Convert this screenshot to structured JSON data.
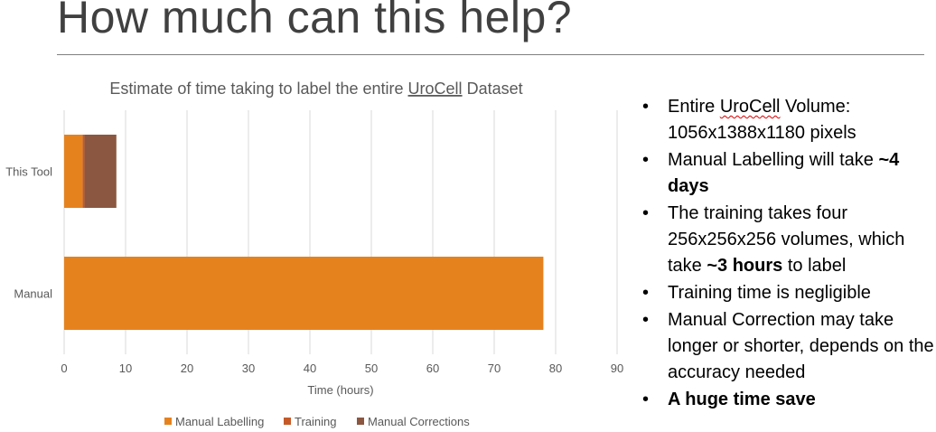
{
  "slide": {
    "title": "How much can this help?"
  },
  "chart_data": {
    "type": "bar",
    "orientation": "horizontal",
    "stacked": true,
    "title": "Estimate of time taking to label the entire UroCell Dataset",
    "title_parts": [
      "Estimate of time taking to label the entire ",
      "UroCell",
      " Dataset"
    ],
    "categories": [
      "This Tool",
      "Manual"
    ],
    "series": [
      {
        "name": "Manual Labelling",
        "values": [
          3,
          78
        ],
        "color": "#e6821e"
      },
      {
        "name": "Training",
        "values": [
          0.3,
          0
        ],
        "color": "#c55a28"
      },
      {
        "name": "Manual Corrections",
        "values": [
          5.2,
          0
        ],
        "color": "#8b5740"
      }
    ],
    "xlabel": "Time (hours)",
    "ylabel": "",
    "xlim": [
      0,
      90
    ],
    "xticks": [
      "0",
      "10",
      "20",
      "30",
      "40",
      "50",
      "60",
      "70",
      "80",
      "90"
    ],
    "grid": "vertical",
    "legend_position": "bottom"
  },
  "bullets": [
    {
      "parts": [
        {
          "t": "Entire "
        },
        {
          "t": "UroCell",
          "style": "wavy"
        },
        {
          "t": " Volume: 1056x1388x1180 pixels"
        }
      ]
    },
    {
      "parts": [
        {
          "t": "Manual Labelling will take "
        },
        {
          "t": "~4 days",
          "style": "bold"
        }
      ]
    },
    {
      "parts": [
        {
          "t": "The training takes four 256x256x256 volumes, which take "
        },
        {
          "t": "~3 hours",
          "style": "bold"
        },
        {
          "t": " to label"
        }
      ]
    },
    {
      "parts": [
        {
          "t": "Training time is negligible"
        }
      ]
    },
    {
      "parts": [
        {
          "t": "Manual Correction may take longer or shorter, depends on the accuracy needed"
        }
      ]
    },
    {
      "parts": [
        {
          "t": "A huge time save",
          "style": "bold"
        }
      ]
    }
  ]
}
